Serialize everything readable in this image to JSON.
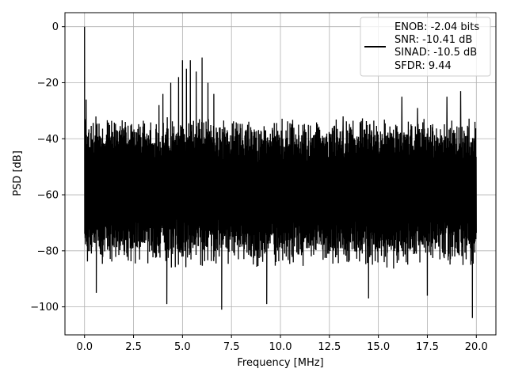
{
  "chart_data": {
    "type": "line",
    "title": "",
    "xlabel": "Frequency [MHz]",
    "ylabel": "PSD [dB]",
    "xlim": [
      -1.0,
      21.0
    ],
    "ylim": [
      -110,
      5
    ],
    "x_ticks": [
      0.0,
      2.5,
      5.0,
      7.5,
      10.0,
      12.5,
      15.0,
      17.5,
      20.0
    ],
    "x_tick_labels": [
      "0.0",
      "2.5",
      "5.0",
      "7.5",
      "10.0",
      "12.5",
      "15.0",
      "17.5",
      "20.0"
    ],
    "y_ticks": [
      0,
      -20,
      -40,
      -60,
      -80,
      -100
    ],
    "y_tick_labels": [
      "0",
      "−20",
      "−40",
      "−60",
      "−80",
      "−100"
    ],
    "grid": true,
    "legend_position": "top-right",
    "series": [
      {
        "color": "#000000",
        "x_range": [
          0.0,
          20.0
        ],
        "points": 2000,
        "baseline_db": -58,
        "upper_envelope_db": -36,
        "lower_envelope_db": -82,
        "peaks": [
          {
            "x": 0.0,
            "y": 0.0
          },
          {
            "x": 0.08,
            "y": -26
          },
          {
            "x": 3.8,
            "y": -28
          },
          {
            "x": 4.0,
            "y": -24
          },
          {
            "x": 4.4,
            "y": -20
          },
          {
            "x": 4.8,
            "y": -18
          },
          {
            "x": 5.0,
            "y": -12
          },
          {
            "x": 5.2,
            "y": -15
          },
          {
            "x": 5.4,
            "y": -12
          },
          {
            "x": 5.7,
            "y": -16
          },
          {
            "x": 6.0,
            "y": -11
          },
          {
            "x": 6.3,
            "y": -20
          },
          {
            "x": 6.6,
            "y": -24
          },
          {
            "x": 13.2,
            "y": -32
          },
          {
            "x": 14.5,
            "y": -28
          },
          {
            "x": 16.2,
            "y": -25
          },
          {
            "x": 17.0,
            "y": -29
          },
          {
            "x": 18.5,
            "y": -25
          },
          {
            "x": 19.2,
            "y": -23
          },
          {
            "x": 19.8,
            "y": -27
          }
        ],
        "dips": [
          {
            "x": 0.6,
            "y": -95
          },
          {
            "x": 4.2,
            "y": -99
          },
          {
            "x": 7.0,
            "y": -101
          },
          {
            "x": 9.3,
            "y": -99
          },
          {
            "x": 14.5,
            "y": -97
          },
          {
            "x": 17.5,
            "y": -96
          },
          {
            "x": 19.8,
            "y": -104
          }
        ]
      }
    ],
    "legend_lines": [
      "ENOB: -2.04 bits",
      "SNR: -10.41 dB",
      "SINAD: -10.5 dB",
      "SFDR: 9.44"
    ]
  }
}
